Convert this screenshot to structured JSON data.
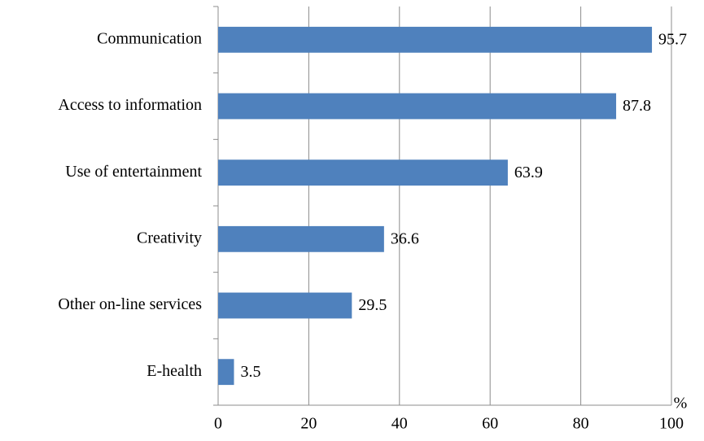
{
  "chart_data": {
    "type": "barh",
    "categories": [
      "Communication",
      "Access to information",
      "Use of entertainment",
      "Creativity",
      "Other on-line services",
      "E-health"
    ],
    "values": [
      95.7,
      87.8,
      63.9,
      36.6,
      29.5,
      3.5
    ],
    "color": "#4f81bd",
    "x_label": "%",
    "xlim": [
      0,
      100
    ],
    "xticks": [
      0,
      20,
      40,
      60,
      80,
      100
    ],
    "grid": true
  }
}
